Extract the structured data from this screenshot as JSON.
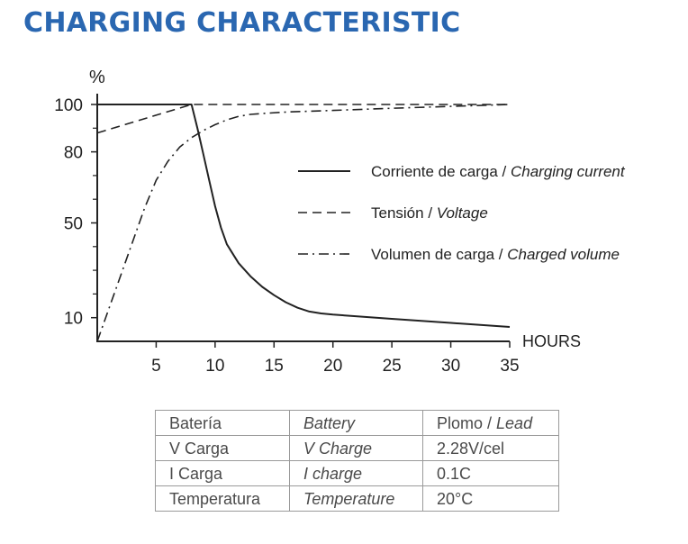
{
  "page": {
    "title": "CHARGING CHARACTERISTIC"
  },
  "chart_data": {
    "type": "line",
    "title": "",
    "xlabel": "HOURS",
    "ylabel": "%",
    "xlim": [
      0,
      35
    ],
    "ylim": [
      0,
      100
    ],
    "x_ticks": [
      5,
      10,
      15,
      20,
      25,
      30,
      35
    ],
    "y_ticks": [
      10,
      50,
      80,
      100
    ],
    "y_minor_ticks": [
      20,
      30,
      40,
      60,
      70,
      90
    ],
    "grid": false,
    "legend_position": "right",
    "series": [
      {
        "name": "Corriente de carga / Charging current",
        "name_main": "Corriente de carga / ",
        "name_italic": "Charging current",
        "style": "solid",
        "color": "#222222",
        "x": [
          0,
          8,
          8.5,
          9,
          9.5,
          10,
          10.5,
          11,
          12,
          13,
          14,
          15,
          16,
          17,
          18,
          19,
          20,
          25,
          30,
          35
        ],
        "y": [
          100,
          100,
          90,
          79,
          68,
          57,
          48,
          41,
          33,
          27.5,
          23,
          19.5,
          16.5,
          14.2,
          12.6,
          11.8,
          11.3,
          9.5,
          7.8,
          6.1
        ]
      },
      {
        "name": "Tensión / Voltage",
        "name_main": "Tensión / ",
        "name_italic": "Voltage",
        "style": "dashed",
        "color": "#222222",
        "x": [
          0,
          8,
          35
        ],
        "y": [
          88,
          100,
          100
        ]
      },
      {
        "name": "Volumen de carga / Charged volume",
        "name_main": "Volumen de carga / ",
        "name_italic": "Charged volume",
        "style": "dashdot",
        "color": "#222222",
        "x": [
          0,
          2,
          4,
          5,
          6,
          7,
          8,
          9,
          10,
          11,
          12,
          13,
          14,
          16,
          20,
          25,
          30,
          35
        ],
        "y": [
          0,
          28,
          56,
          68,
          76,
          82,
          86,
          89,
          91.5,
          93.5,
          95,
          95.8,
          96.2,
          96.8,
          97.5,
          98.4,
          99.2,
          100
        ]
      }
    ]
  },
  "spec_table": {
    "rows": [
      {
        "es": "Batería",
        "en": "Battery",
        "value_main": "Plomo / ",
        "value_italic": "Lead"
      },
      {
        "es": "V Carga",
        "en": "V Charge",
        "value_main": "2.28V/cel",
        "value_italic": ""
      },
      {
        "es": "I Carga",
        "en": "I charge",
        "value_main": "0.1C",
        "value_italic": ""
      },
      {
        "es": "Temperatura",
        "en": "Temperature",
        "value_main": "20°C",
        "value_italic": ""
      }
    ]
  }
}
